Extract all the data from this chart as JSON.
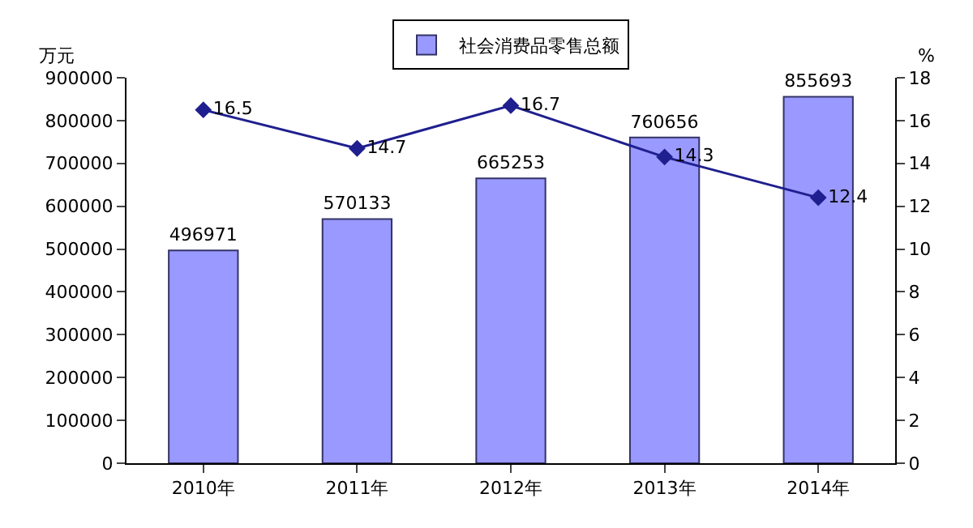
{
  "chart_data": {
    "type": "bar",
    "ylabel": "万元",
    "y2label": "%",
    "categories": [
      "2010年",
      "2011年",
      "2012年",
      "2013年",
      "2014年"
    ],
    "series": [
      {
        "name": "社会消费品零售总额",
        "color": "#9999ff",
        "values": [
          496971,
          570133,
          665253,
          760656,
          855693
        ]
      },
      {
        "type": "line",
        "axis": "y2",
        "color": "#1f1f8f",
        "marker": "diamond",
        "values": [
          16.5,
          14.7,
          16.7,
          14.3,
          12.4
        ]
      }
    ],
    "ylim": [
      0,
      900000
    ],
    "yticks": [
      0,
      100000,
      200000,
      300000,
      400000,
      500000,
      600000,
      700000,
      800000,
      900000
    ],
    "y2lim": [
      0,
      18
    ],
    "y2ticks": [
      0,
      2,
      4,
      6,
      8,
      10,
      12,
      14,
      16,
      18
    ],
    "data_labels": true,
    "legend": "top"
  }
}
